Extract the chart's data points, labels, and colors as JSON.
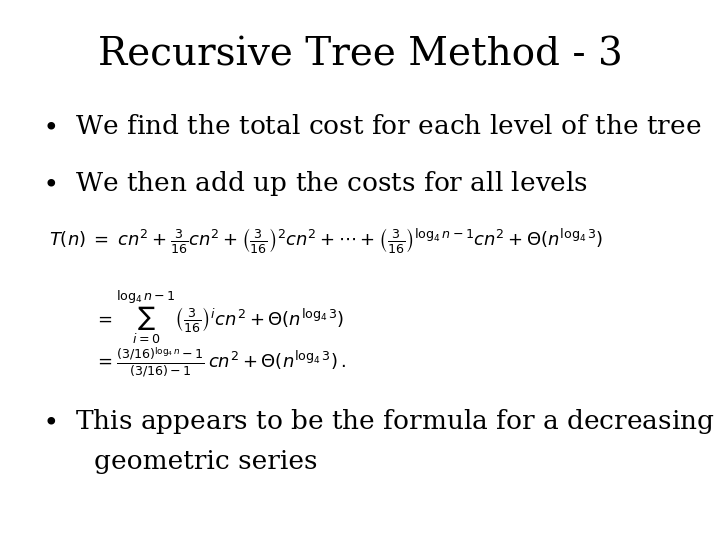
{
  "title": "Recursive Tree Method - 3",
  "title_fontsize": 28,
  "bg_color": "#ffffff",
  "text_color": "#000000",
  "bullet1": "We find the total cost for each level of the tree",
  "bullet2": "We then add up the costs for all levels",
  "bullet3_line1": "This appears to be the formula for a decreasing",
  "bullet3_line2": "geometric series",
  "bullet_fontsize": 19,
  "math_fontsize": 13
}
